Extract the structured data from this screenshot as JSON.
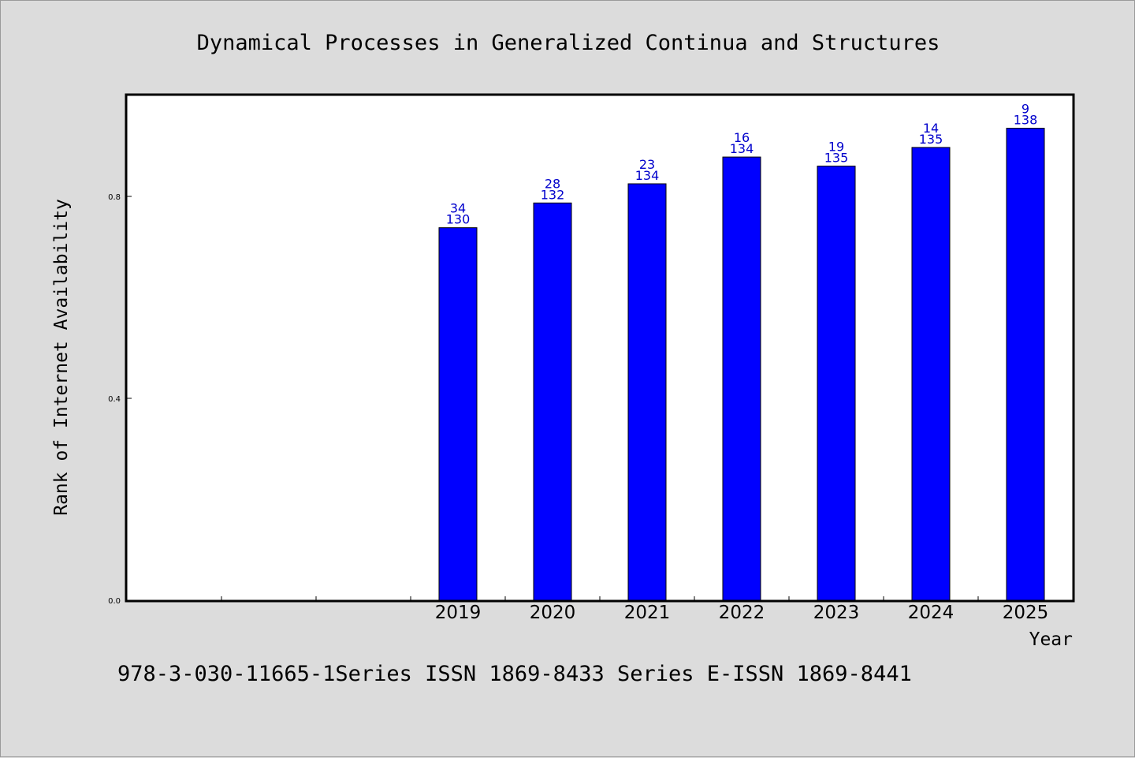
{
  "colors": {
    "bar": "#0000ff",
    "label": "#0000cc",
    "background": "#dcdcdc",
    "plot_bg": "#ffffff"
  },
  "footer": "978-3-030-11665-1Series ISSN 1869-8433 Series E-ISSN 1869-8441",
  "chart_data": {
    "type": "bar",
    "title": "Dynamical Processes in Generalized Continua and Structures",
    "xlabel": "Year",
    "ylabel": "Rank of Internet Availability",
    "ylim": [
      0,
      1.0
    ],
    "yticks": [
      "0.0",
      "0.4",
      "0.8"
    ],
    "ytick_values": [
      0.0,
      0.4,
      0.8
    ],
    "grid": false,
    "categories": [
      "",
      "",
      "",
      "2019",
      "2020",
      "2021",
      "2022",
      "2023",
      "2024",
      "2025"
    ],
    "values": [
      null,
      null,
      null,
      0.738,
      0.787,
      0.825,
      0.878,
      0.86,
      0.897,
      0.935
    ],
    "labels_top": [
      "",
      "",
      "",
      "34",
      "28",
      "23",
      "16",
      "19",
      "14",
      "9"
    ],
    "labels_bottom": [
      "",
      "",
      "",
      "130",
      "132",
      "134",
      "134",
      "135",
      "135",
      "138"
    ]
  }
}
